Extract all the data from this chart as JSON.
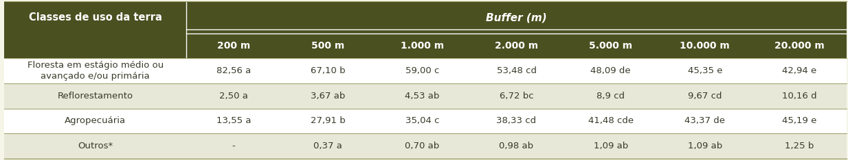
{
  "header_main": "Classes de uso da terra",
  "header_buffer": "Buffer (m)",
  "col_headers": [
    "200 m",
    "500 m",
    "1.000 m",
    "2.000 m",
    "5.000 m",
    "10.000 m",
    "20.000 m"
  ],
  "rows": [
    {
      "label": "Floresta em estágio médio ou\navançado e/ou primária",
      "values": [
        "82,56 a",
        "67,10 b",
        "59,00 c",
        "53,48 cd",
        "48,09 de",
        "45,35 e",
        "42,94 e"
      ],
      "bg": "#ffffff"
    },
    {
      "label": "Reflorestamento",
      "values": [
        "2,50 a",
        "3,67 ab",
        "4,53 ab",
        "6,72 bc",
        "8,9 cd",
        "9,67 cd",
        "10,16 d"
      ],
      "bg": "#e8e8d8"
    },
    {
      "label": "Agropecuária",
      "values": [
        "13,55 a",
        "27,91 b",
        "35,04 c",
        "38,33 cd",
        "41,48 cde",
        "43,37 de",
        "45,19 e"
      ],
      "bg": "#ffffff"
    },
    {
      "label": "Outros*",
      "values": [
        "-",
        "0,37 a",
        "0,70 ab",
        "0,98 ab",
        "1,09 ab",
        "1,09 ab",
        "1,25 b"
      ],
      "bg": "#e8e8d8"
    }
  ],
  "header_bg": "#4a5020",
  "header_text_color": "#ffffff",
  "body_text_color": "#3a3a2a",
  "border_color": "#8a9050",
  "fig_width": 12.34,
  "fig_height": 2.34
}
